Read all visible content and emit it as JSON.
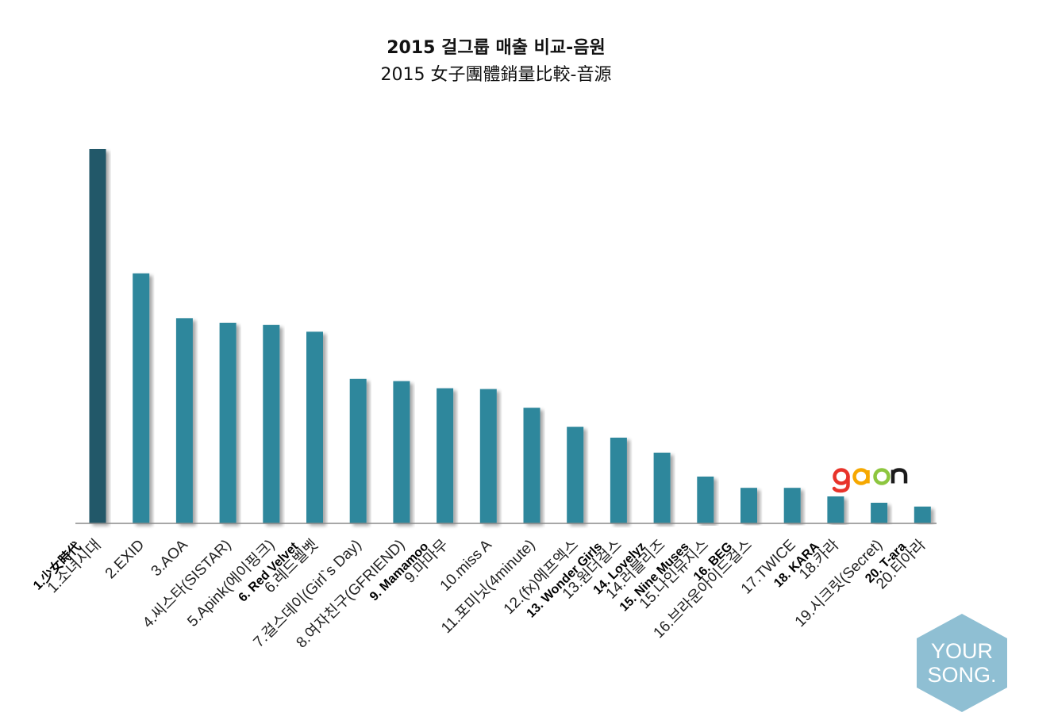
{
  "title": "2015 걸그룹 매출 비교-음원",
  "subtitle": "2015 女子團體銷量比較-音源",
  "colors": {
    "bar": "#2e879c",
    "bar_first": "#235969",
    "axis": "#8a8a8a"
  },
  "logo": {
    "text": "gaon"
  },
  "badge": {
    "line1": "YOUR",
    "line2": "SONG."
  },
  "chart_data": {
    "type": "bar",
    "title": "2015 걸그룹 매출 비교-음원",
    "subtitle": "2015 女子團體銷量比較-音源",
    "ylim": [
      0,
      100
    ],
    "grid": false,
    "legend": "none",
    "categories": [
      "1.소녀시대",
      "2.EXID",
      "3.AOA",
      "4.씨스타(SISTAR)",
      "5.Apink(에이핑크)",
      "6.레드벨벳",
      "7.걸스데이(Girl`s Day)",
      "8.여자친구(GFRIEND)",
      "9.마마무",
      "10.miss A",
      "11.포미닛(4minute)",
      "12.(fx)에프엑스",
      "13.원더걸스",
      "14.러블리즈",
      "15.나인뮤지스",
      "16.브라운아이드걸스",
      "17.TWICE",
      "18.카라",
      "19.시크릿(Secret)",
      "20.티아라"
    ],
    "alt_labels": [
      "1.少女時代",
      "",
      "",
      "",
      "",
      "6. Red Velvet",
      "",
      "",
      "9. Mamamoo",
      "",
      "",
      "",
      "13. Wonder Girls",
      "14. Lovelyz",
      "15. Nine Muses",
      "16. BEG",
      "",
      "18. KARA",
      "",
      "20. T-ara"
    ],
    "values": [
      100,
      66.8,
      54.8,
      53.6,
      53.0,
      51.2,
      38.6,
      38.0,
      36.1,
      35.9,
      30.9,
      25.8,
      22.9,
      18.9,
      12.5,
      9.5,
      9.5,
      7.2,
      5.5,
      4.5
    ]
  }
}
